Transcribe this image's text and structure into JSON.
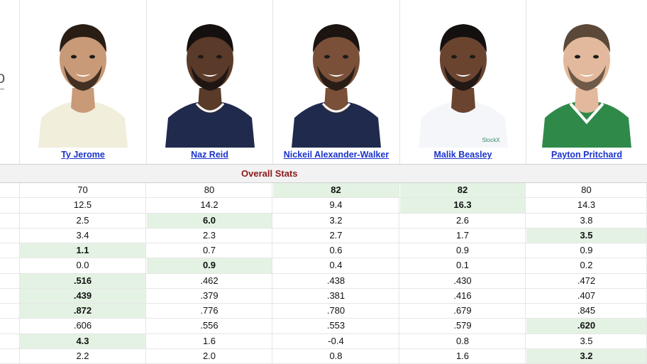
{
  "section_title": "Overall Stats",
  "players": [
    {
      "name": "Ty Jerome",
      "jersey": "light-yellow",
      "skin": "#c99a78",
      "hair": "#2a1d14"
    },
    {
      "name": "Naz Reid",
      "jersey": "navy",
      "skin": "#5a3a28",
      "hair": "#151010"
    },
    {
      "name": "Nickeil Alexander-Walker",
      "jersey": "navy",
      "skin": "#7a5038",
      "hair": "#1b1410"
    },
    {
      "name": "Malik Beasley",
      "jersey": "white",
      "skin": "#6b4430",
      "hair": "#151010"
    },
    {
      "name": "Payton Pritchard",
      "jersey": "green",
      "skin": "#e2b99c",
      "hair": "#5b4838"
    }
  ],
  "stat_rows": [
    [
      {
        "v": "70"
      },
      {
        "v": "80"
      },
      {
        "v": "82",
        "best": true
      },
      {
        "v": "82",
        "best": true
      },
      {
        "v": "80"
      }
    ],
    [
      {
        "v": "12.5"
      },
      {
        "v": "14.2"
      },
      {
        "v": "9.4"
      },
      {
        "v": "16.3",
        "best": true
      },
      {
        "v": "14.3"
      }
    ],
    [
      {
        "v": "2.5"
      },
      {
        "v": "6.0",
        "best": true
      },
      {
        "v": "3.2"
      },
      {
        "v": "2.6"
      },
      {
        "v": "3.8"
      }
    ],
    [
      {
        "v": "3.4"
      },
      {
        "v": "2.3"
      },
      {
        "v": "2.7"
      },
      {
        "v": "1.7"
      },
      {
        "v": "3.5",
        "best": true
      }
    ],
    [
      {
        "v": "1.1",
        "best": true
      },
      {
        "v": "0.7"
      },
      {
        "v": "0.6"
      },
      {
        "v": "0.9"
      },
      {
        "v": "0.9"
      }
    ],
    [
      {
        "v": "0.0"
      },
      {
        "v": "0.9",
        "best": true
      },
      {
        "v": "0.4"
      },
      {
        "v": "0.1"
      },
      {
        "v": "0.2"
      }
    ],
    [
      {
        "v": ".516",
        "best": true
      },
      {
        "v": ".462"
      },
      {
        "v": ".438"
      },
      {
        "v": ".430"
      },
      {
        "v": ".472"
      }
    ],
    [
      {
        "v": ".439",
        "best": true
      },
      {
        "v": ".379"
      },
      {
        "v": ".381"
      },
      {
        "v": ".416"
      },
      {
        "v": ".407"
      }
    ],
    [
      {
        "v": ".872",
        "best": true
      },
      {
        "v": ".776"
      },
      {
        "v": ".780"
      },
      {
        "v": ".679"
      },
      {
        "v": ".845"
      }
    ],
    [
      {
        "v": ".606"
      },
      {
        "v": ".556"
      },
      {
        "v": ".553"
      },
      {
        "v": ".579"
      },
      {
        "v": ".620",
        "best": true
      }
    ],
    [
      {
        "v": "4.3",
        "best": true
      },
      {
        "v": "1.6"
      },
      {
        "v": "-0.4"
      },
      {
        "v": "0.8"
      },
      {
        "v": "3.5"
      }
    ],
    [
      {
        "v": "2.2"
      },
      {
        "v": "2.0"
      },
      {
        "v": "0.8"
      },
      {
        "v": "1.6"
      },
      {
        "v": "3.2",
        "best": true
      }
    ]
  ],
  "colors": {
    "link": "#1a33cc",
    "section_title": "#8b1a1a",
    "best_cell_bg": "#e4f2e4",
    "jerseys": {
      "light-yellow": "#f1eedc",
      "navy": "#1f2a4d",
      "white": "#f4f6fa",
      "green": "#2f8a4a"
    }
  }
}
